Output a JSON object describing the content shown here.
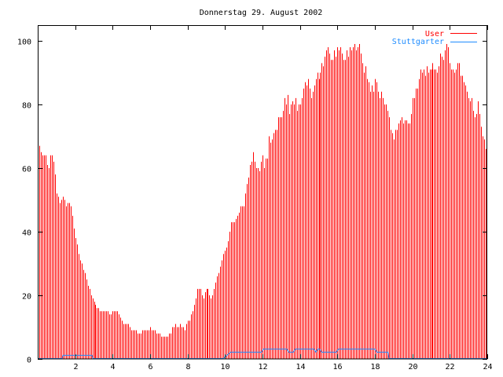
{
  "chart_data": {
    "type": "bar",
    "title": "Donnerstag 29. August 2002",
    "xlabel": "",
    "ylabel": "",
    "xlim": [
      0,
      24
    ],
    "ylim": [
      0,
      105
    ],
    "xticks": [
      2,
      4,
      6,
      8,
      10,
      12,
      14,
      16,
      18,
      20,
      22,
      24
    ],
    "yticks": [
      0,
      20,
      40,
      60,
      80,
      100
    ],
    "legend_position": "top-right",
    "interval_minutes": 5,
    "series": [
      {
        "name": "User",
        "style": "impulses",
        "color": "#ff0000",
        "values": [
          70,
          67,
          65,
          64,
          64,
          64,
          61,
          60,
          64,
          64,
          62,
          58,
          52,
          51,
          49,
          50,
          51,
          50,
          48,
          49,
          49,
          48,
          45,
          41,
          38,
          36,
          33,
          31,
          30,
          28,
          27,
          25,
          23,
          22,
          20,
          19,
          18,
          17,
          16,
          16,
          15,
          15,
          15,
          15,
          15,
          15,
          14,
          14,
          15,
          15,
          15,
          15,
          14,
          13,
          12,
          11,
          11,
          11,
          11,
          10,
          9,
          9,
          9,
          9,
          8,
          8,
          8,
          9,
          9,
          9,
          9,
          9,
          10,
          9,
          9,
          9,
          8,
          8,
          8,
          7,
          7,
          7,
          7,
          7,
          8,
          8,
          10,
          10,
          11,
          10,
          10,
          11,
          10,
          10,
          9,
          11,
          12,
          12,
          14,
          15,
          17,
          19,
          22,
          22,
          22,
          20,
          19,
          21,
          22,
          22,
          20,
          19,
          20,
          22,
          24,
          26,
          27,
          29,
          31,
          33,
          34,
          35,
          37,
          40,
          43,
          43,
          43,
          44,
          45,
          46,
          48,
          48,
          48,
          52,
          55,
          57,
          61,
          62,
          65,
          62,
          60,
          60,
          59,
          62,
          64,
          60,
          63,
          63,
          70,
          68,
          69,
          71,
          72,
          72,
          76,
          76,
          76,
          78,
          82,
          80,
          83,
          77,
          80,
          81,
          80,
          82,
          78,
          80,
          80,
          82,
          85,
          87,
          86,
          88,
          85,
          82,
          84,
          86,
          88,
          90,
          88,
          90,
          93,
          92,
          95,
          97,
          98,
          96,
          94,
          94,
          97,
          95,
          98,
          97,
          98,
          96,
          94,
          94,
          97,
          95,
          98,
          97,
          98,
          99,
          97,
          98,
          99,
          96,
          93,
          90,
          92,
          88,
          87,
          84,
          86,
          84,
          88,
          87,
          84,
          82,
          84,
          82,
          80,
          80,
          78,
          76,
          72,
          71,
          69,
          72,
          72,
          74,
          75,
          76,
          74,
          75,
          75,
          74,
          74,
          77,
          82,
          82,
          85,
          85,
          88,
          91,
          90,
          91,
          89,
          92,
          90,
          91,
          91,
          93,
          91,
          91,
          90,
          92,
          96,
          95,
          94,
          97,
          99,
          98,
          93,
          91,
          91,
          90,
          91,
          93,
          93,
          89,
          89,
          87,
          86,
          84,
          82,
          81,
          82,
          78,
          76,
          77,
          81,
          77,
          73,
          70,
          69,
          66
        ]
      },
      {
        "name": "Stuttgarter",
        "style": "line",
        "color": "#1e8cff",
        "points": [
          [
            0,
            0
          ],
          [
            1.3,
            0
          ],
          [
            1.35,
            1
          ],
          [
            2.9,
            1
          ],
          [
            2.95,
            0
          ],
          [
            9.9,
            0
          ],
          [
            10.1,
            1
          ],
          [
            10.3,
            2
          ],
          [
            11.95,
            2
          ],
          [
            12.05,
            3
          ],
          [
            13.3,
            3
          ],
          [
            13.4,
            2
          ],
          [
            13.65,
            2
          ],
          [
            13.75,
            3
          ],
          [
            14.75,
            3
          ],
          [
            14.85,
            2
          ],
          [
            14.95,
            3
          ],
          [
            15.05,
            3
          ],
          [
            15.15,
            2
          ],
          [
            15.95,
            2
          ],
          [
            16.05,
            3
          ],
          [
            18.0,
            3
          ],
          [
            18.1,
            2
          ],
          [
            18.7,
            2
          ],
          [
            18.75,
            0
          ],
          [
            24,
            0
          ]
        ]
      }
    ]
  }
}
